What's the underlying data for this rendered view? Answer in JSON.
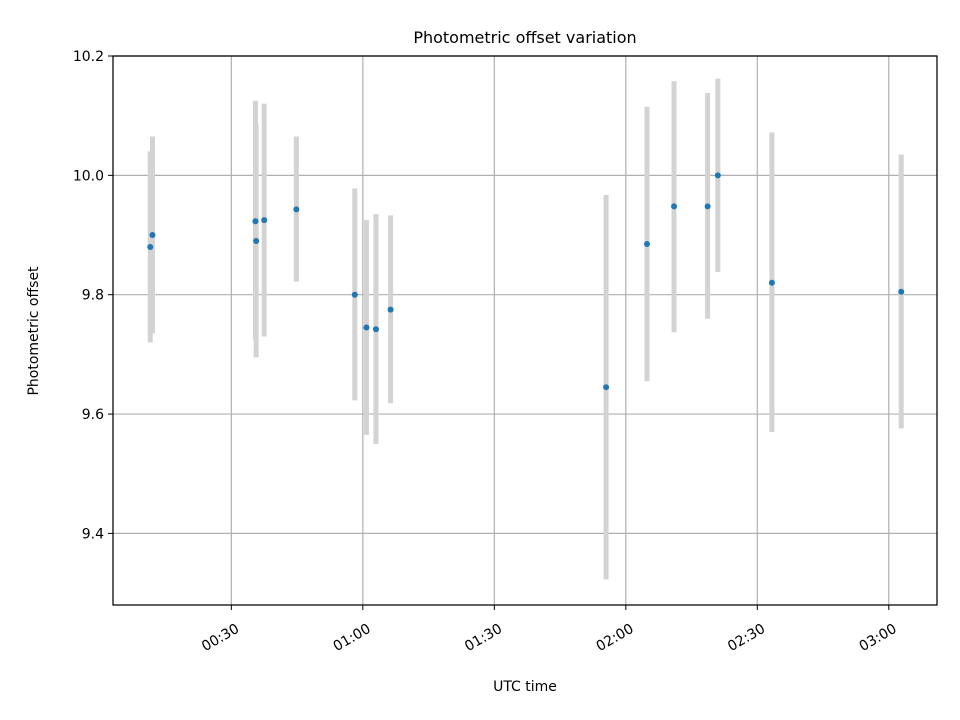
{
  "chart_data": {
    "type": "scatter",
    "title": "Photometric offset variation",
    "xlabel": "UTC time",
    "ylabel": "Photometric offset",
    "x_tick_labels": [
      "00:30",
      "01:00",
      "01:30",
      "02:00",
      "02:30",
      "03:00"
    ],
    "x_ticks": [
      "00:30",
      "01:00",
      "01:30",
      "02:00",
      "02:30",
      "03:00"
    ],
    "xlim": [
      "00:03",
      "03:11"
    ],
    "y_ticks": [
      9.4,
      9.6,
      9.8,
      10.0,
      10.2
    ],
    "y_tick_labels": [
      "9.4",
      "9.6",
      "9.8",
      "10.0",
      "10.2"
    ],
    "ylim": [
      9.28,
      10.2
    ],
    "grid": true,
    "errorbar_color": "#d3d3d3",
    "marker_color": "#1f77b4",
    "points": [
      {
        "x": "00:11:30",
        "y": 9.88,
        "ylow": 9.72,
        "yhigh": 10.04
      },
      {
        "x": "00:12:00",
        "y": 9.9,
        "ylow": 9.735,
        "yhigh": 10.065
      },
      {
        "x": "00:35:30",
        "y": 9.923,
        "ylow": 9.725,
        "yhigh": 10.125
      },
      {
        "x": "00:35:40",
        "y": 9.89,
        "ylow": 9.695,
        "yhigh": 10.085
      },
      {
        "x": "00:37:30",
        "y": 9.925,
        "ylow": 9.73,
        "yhigh": 10.12
      },
      {
        "x": "00:44:50",
        "y": 9.943,
        "ylow": 9.822,
        "yhigh": 10.065
      },
      {
        "x": "00:58:10",
        "y": 9.8,
        "ylow": 9.623,
        "yhigh": 9.978
      },
      {
        "x": "01:00:50",
        "y": 9.745,
        "ylow": 9.565,
        "yhigh": 9.925
      },
      {
        "x": "01:03:00",
        "y": 9.742,
        "ylow": 9.55,
        "yhigh": 9.935
      },
      {
        "x": "01:06:20",
        "y": 9.775,
        "ylow": 9.618,
        "yhigh": 9.933
      },
      {
        "x": "01:55:30",
        "y": 9.645,
        "ylow": 9.323,
        "yhigh": 9.967
      },
      {
        "x": "02:04:50",
        "y": 9.885,
        "ylow": 9.655,
        "yhigh": 10.115
      },
      {
        "x": "02:11:00",
        "y": 9.948,
        "ylow": 9.737,
        "yhigh": 10.158
      },
      {
        "x": "02:18:40",
        "y": 9.948,
        "ylow": 9.76,
        "yhigh": 10.138
      },
      {
        "x": "02:21:00",
        "y": 10.0,
        "ylow": 9.838,
        "yhigh": 10.162
      },
      {
        "x": "02:33:20",
        "y": 9.82,
        "ylow": 9.57,
        "yhigh": 10.072
      },
      {
        "x": "03:02:50",
        "y": 9.805,
        "ylow": 9.576,
        "yhigh": 10.035
      }
    ]
  }
}
